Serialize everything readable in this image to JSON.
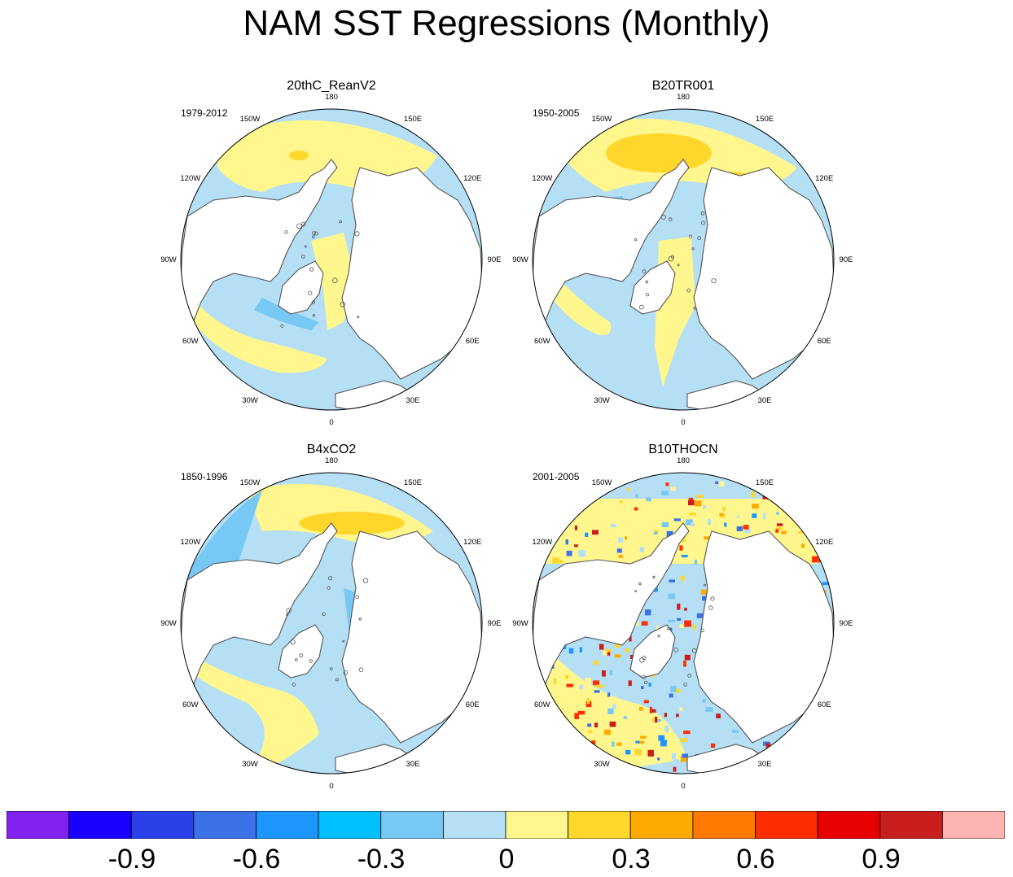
{
  "title": "NAM SST Regressions (Monthly)",
  "panels": [
    {
      "name": "20thC_ReanV2",
      "period": "1979-2012",
      "pattern": "reanalysis"
    },
    {
      "name": "B20TR001",
      "period": "1950-2005",
      "pattern": "b20tr"
    },
    {
      "name": "B4xCO2",
      "period": "1850-1996",
      "pattern": "b4xco2"
    },
    {
      "name": "B10THOCN",
      "period": "2001-2005",
      "pattern": "noisy"
    }
  ],
  "longitude_labels": [
    "180",
    "150E",
    "120E",
    "90E",
    "60E",
    "30E",
    "0",
    "30W",
    "60W",
    "90W",
    "120W",
    "150W"
  ],
  "colorbar": {
    "colors": [
      "#8222f0",
      "#1a00ff",
      "#2a40e8",
      "#3b72e8",
      "#1e96ff",
      "#00c0ff",
      "#78c8f5",
      "#b4dff5",
      "#fff78e",
      "#ffd62a",
      "#ffaa00",
      "#ff7800",
      "#ff2e00",
      "#e60000",
      "#c81e1e",
      "#ffb4b4"
    ],
    "tick_labels": [
      "-0.9",
      "-0.6",
      "-0.3",
      "0",
      "0.3",
      "0.6",
      "0.9"
    ]
  },
  "map_colors": {
    "land": "#ffffff",
    "coast": "#555555",
    "ocean_neg": "#b4dff5",
    "ocean_pos": "#fff78e",
    "mid_pos": "#ffd62a",
    "mid_neg": "#78c8f5"
  }
}
